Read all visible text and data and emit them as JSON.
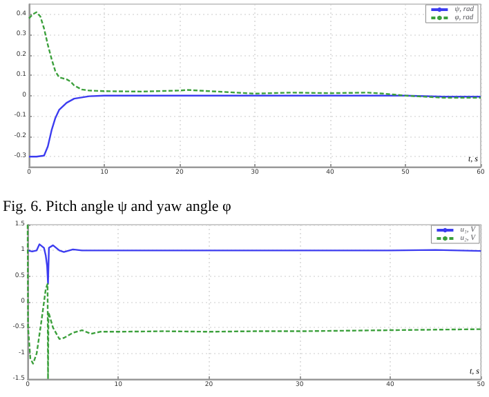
{
  "chart_data": [
    {
      "type": "line",
      "xlabel": "t, s",
      "annotations": [
        "Fig. 6. Pitch angle ψ and yaw angle φ"
      ],
      "xlim": [
        0,
        60
      ],
      "xticks": [
        0,
        10,
        20,
        30,
        40,
        50,
        60
      ],
      "ylim": [
        -0.35,
        0.45
      ],
      "yticks": [
        -0.3,
        -0.2,
        -0.1,
        0,
        0.1,
        0.2,
        0.3,
        0.4
      ],
      "grid": true,
      "legend": "top right",
      "marker": "none",
      "series": [
        {
          "name": "ψ, rad",
          "color": "#3c3cf0",
          "line_style": "solid",
          "x": [
            0,
            1,
            2,
            2.5,
            3,
            3.5,
            4,
            5,
            6,
            8,
            10,
            20,
            30,
            40,
            50,
            55,
            60
          ],
          "values": [
            -0.3,
            -0.3,
            -0.295,
            -0.25,
            -0.17,
            -0.11,
            -0.07,
            -0.035,
            -0.015,
            -0.003,
            0,
            0,
            0,
            0,
            0,
            -0.005,
            -0.005
          ]
        },
        {
          "name": "φ, rad",
          "color": "#3ca03c",
          "line_style": "dashed",
          "x": [
            0,
            0.5,
            1,
            1.5,
            2,
            2.5,
            3,
            3.5,
            4,
            4.5,
            5,
            5.5,
            6,
            7,
            8,
            10,
            15,
            20,
            21,
            25,
            30,
            35,
            40,
            45,
            47,
            50,
            55,
            60
          ],
          "values": [
            0.38,
            0.4,
            0.41,
            0.39,
            0.33,
            0.25,
            0.18,
            0.12,
            0.09,
            0.085,
            0.08,
            0.07,
            0.05,
            0.03,
            0.025,
            0.022,
            0.02,
            0.025,
            0.028,
            0.02,
            0.01,
            0.015,
            0.012,
            0.015,
            0.01,
            0,
            -0.01,
            -0.01
          ]
        }
      ]
    },
    {
      "type": "line",
      "xlabel": "t, s",
      "xlim": [
        0,
        50
      ],
      "xticks": [
        0,
        10,
        20,
        30,
        40,
        50
      ],
      "ylim": [
        -1.5,
        1.5
      ],
      "yticks": [
        -1.5,
        -1,
        -0.5,
        0,
        0.5,
        1,
        1.5
      ],
      "grid": true,
      "legend": "top right",
      "marker": "none",
      "series": [
        {
          "name": "u₁, V",
          "color": "#3c3cf0",
          "line_style": "solid",
          "x": [
            0,
            0.5,
            1,
            1.3,
            1.8,
            2,
            2.15,
            2.25,
            2.35,
            2.8,
            3.5,
            4,
            5,
            6,
            10,
            20,
            30,
            40,
            45,
            50
          ],
          "values": [
            1,
            0.98,
            1,
            1.12,
            1.05,
            0.9,
            0.7,
            0.35,
            1.05,
            1.1,
            1,
            0.97,
            1.02,
            1,
            1,
            1,
            1,
            1,
            1.01,
            0.99
          ]
        },
        {
          "name": "u₂, V",
          "color": "#3ca03c",
          "line_style": "dashed",
          "x": [
            0,
            0.05,
            0.3,
            0.6,
            1,
            1.5,
            2,
            2.2,
            2.25,
            2.3,
            2.8,
            3.5,
            4,
            5,
            6,
            7,
            8,
            10,
            15,
            20,
            25,
            30,
            35,
            40,
            45,
            50
          ],
          "values": [
            1.5,
            -0.5,
            -1.1,
            -1.2,
            -1,
            -0.4,
            0.25,
            0.35,
            -1.5,
            -0.2,
            -0.5,
            -0.72,
            -0.7,
            -0.6,
            -0.55,
            -0.62,
            -0.58,
            -0.58,
            -0.57,
            -0.58,
            -0.57,
            -0.57,
            -0.56,
            -0.55,
            -0.54,
            -0.53
          ]
        }
      ]
    }
  ]
}
